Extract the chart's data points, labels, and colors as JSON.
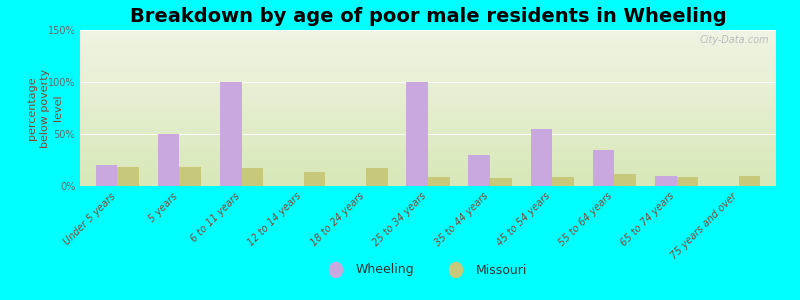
{
  "title": "Breakdown by age of poor male residents in Wheeling",
  "ylabel": "percentage\nbelow poverty\nlevel",
  "categories": [
    "Under 5 years",
    "5 years",
    "6 to 11 years",
    "12 to 14 years",
    "18 to 24 years",
    "25 to 34 years",
    "35 to 44 years",
    "45 to 54 years",
    "55 to 64 years",
    "65 to 74 years",
    "75 years and over"
  ],
  "wheeling": [
    20,
    50,
    100,
    0,
    0,
    100,
    30,
    55,
    35,
    10,
    0
  ],
  "missouri": [
    18,
    18,
    17,
    13,
    17,
    9,
    8,
    9,
    12,
    9,
    10
  ],
  "wheeling_color": "#c9a8e0",
  "missouri_color": "#c8c87a",
  "bg_top": "#f0f4e4",
  "bg_bottom": "#d8e8b8",
  "outer_bg": "#00ffff",
  "ylim": [
    0,
    150
  ],
  "yticks": [
    0,
    50,
    100,
    150
  ],
  "ytick_labels": [
    "0%",
    "50%",
    "100%",
    "150%"
  ],
  "bar_width": 0.35,
  "title_fontsize": 14,
  "ylabel_fontsize": 8,
  "tick_fontsize": 7,
  "legend_fontsize": 9,
  "watermark": "City-Data.com"
}
